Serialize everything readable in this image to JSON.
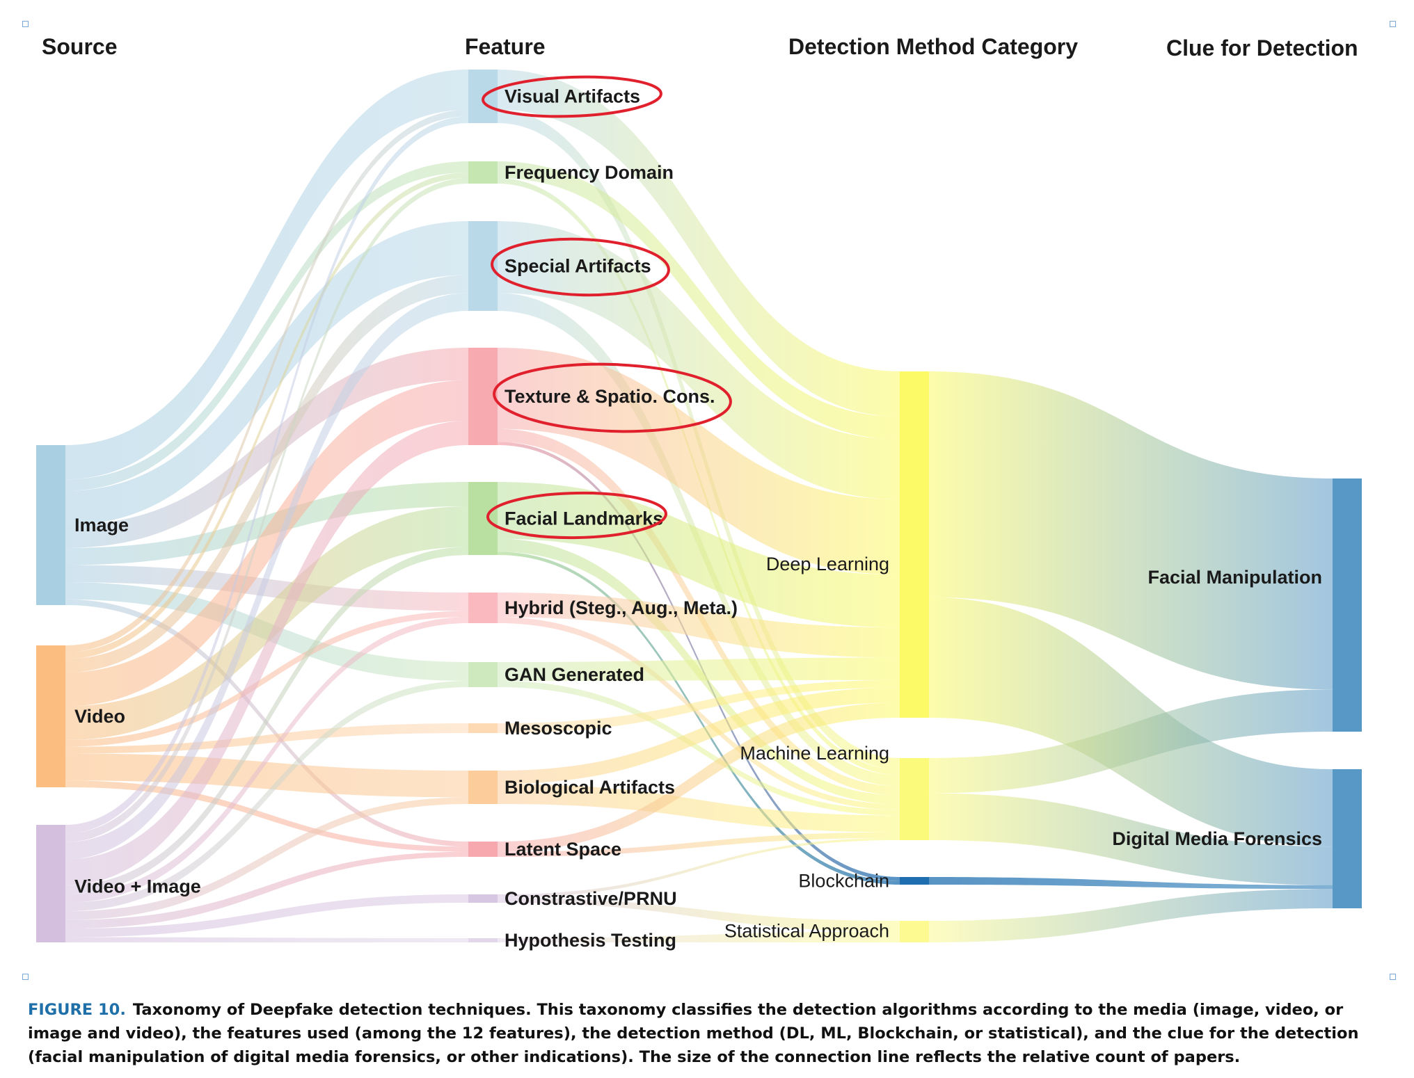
{
  "headers": {
    "source": "Source",
    "feature": "Feature",
    "method": "Detection Method Category",
    "clue": "Clue for Detection"
  },
  "nodes": [
    {
      "id": "image",
      "label": "Image",
      "column": 0,
      "color": "#a9cfe3",
      "opacity": 1
    },
    {
      "id": "video",
      "label": "Video",
      "column": 0,
      "color": "#fbbd80",
      "opacity": 1
    },
    {
      "id": "videoimage",
      "label": "Video + Image",
      "column": 0,
      "color": "#d4c0de",
      "opacity": 1
    },
    {
      "id": "visual",
      "label": "Visual Artifacts",
      "column": 1,
      "color": "#b9d8e8",
      "opacity": 1,
      "circled": true
    },
    {
      "id": "frequency",
      "label": "Frequency Domain",
      "column": 1,
      "color": "#c5e6b0",
      "opacity": 1
    },
    {
      "id": "special",
      "label": "Special Artifacts",
      "column": 1,
      "color": "#b9d8e8",
      "opacity": 1,
      "circled": true
    },
    {
      "id": "texture",
      "label": "Texture & Spatio. Cons.",
      "column": 1,
      "color": "#f7aab0",
      "opacity": 1,
      "circled": true
    },
    {
      "id": "facial",
      "label": "Facial Landmarks",
      "column": 1,
      "color": "#b9e0a0",
      "opacity": 1,
      "circled": true
    },
    {
      "id": "hybrid",
      "label": "Hybrid (Steg., Aug., Meta.)",
      "column": 1,
      "color": "#f9b9be",
      "opacity": 1
    },
    {
      "id": "gan",
      "label": "GAN Generated",
      "column": 1,
      "color": "#cde9bd",
      "opacity": 1
    },
    {
      "id": "meso",
      "label": "Mesoscopic",
      "column": 1,
      "color": "#fdd9b4",
      "opacity": 1
    },
    {
      "id": "bio",
      "label": "Biological Artifacts",
      "column": 1,
      "color": "#fccc9a",
      "opacity": 1
    },
    {
      "id": "latent",
      "label": "Latent Space",
      "column": 1,
      "color": "#f6a8ae",
      "opacity": 1
    },
    {
      "id": "prnu",
      "label": "Constrastive/PRNU",
      "column": 1,
      "color": "#d8c7e3",
      "opacity": 1
    },
    {
      "id": "hypo",
      "label": "Hypothesis Testing",
      "column": 1,
      "color": "#e2d6ea",
      "opacity": 1
    },
    {
      "id": "dl",
      "label": "Deep Learning",
      "column": 2,
      "color": "#fcfa66",
      "opacity": 1
    },
    {
      "id": "ml",
      "label": "Machine Learning",
      "column": 2,
      "color": "#fcfa7a",
      "opacity": 1
    },
    {
      "id": "bc",
      "label": "Blockchain",
      "column": 2,
      "color": "#1f6fb0",
      "opacity": 1
    },
    {
      "id": "stat",
      "label": "Statistical Approach",
      "column": 2,
      "color": "#fcfa90",
      "opacity": 1
    },
    {
      "id": "fm",
      "label": "Facial Manipulation",
      "column": 3,
      "color": "#5798c6",
      "opacity": 1
    },
    {
      "id": "dmf",
      "label": "Digital Media Forensics",
      "column": 3,
      "color": "#5798c6",
      "opacity": 1
    }
  ],
  "links": [
    {
      "source": "image",
      "target": "visual",
      "value": 3
    },
    {
      "source": "image",
      "target": "frequency",
      "value": 1
    },
    {
      "source": "image",
      "target": "special",
      "value": 3
    },
    {
      "source": "image",
      "target": "texture",
      "value": 2
    },
    {
      "source": "image",
      "target": "facial",
      "value": 1.5
    },
    {
      "source": "image",
      "target": "hybrid",
      "value": 1.5
    },
    {
      "source": "image",
      "target": "gan",
      "value": 1.5
    },
    {
      "source": "image",
      "target": "latent",
      "value": 0.5
    },
    {
      "source": "video",
      "target": "visual",
      "value": 0.5
    },
    {
      "source": "video",
      "target": "frequency",
      "value": 0.5
    },
    {
      "source": "video",
      "target": "special",
      "value": 1
    },
    {
      "source": "video",
      "target": "texture",
      "value": 2.5
    },
    {
      "source": "video",
      "target": "facial",
      "value": 2.5
    },
    {
      "source": "video",
      "target": "hybrid",
      "value": 0.5
    },
    {
      "source": "video",
      "target": "meso",
      "value": 0.5
    },
    {
      "source": "video",
      "target": "bio",
      "value": 2
    },
    {
      "source": "video",
      "target": "latent",
      "value": 0.5
    },
    {
      "source": "videoimage",
      "target": "visual",
      "value": 0.5
    },
    {
      "source": "videoimage",
      "target": "frequency",
      "value": 0.5
    },
    {
      "source": "videoimage",
      "target": "special",
      "value": 1
    },
    {
      "source": "videoimage",
      "target": "texture",
      "value": 1.5
    },
    {
      "source": "videoimage",
      "target": "facial",
      "value": 0.5
    },
    {
      "source": "videoimage",
      "target": "hybrid",
      "value": 0.5
    },
    {
      "source": "videoimage",
      "target": "gan",
      "value": 0.5
    },
    {
      "source": "videoimage",
      "target": "bio",
      "value": 0.5
    },
    {
      "source": "videoimage",
      "target": "latent",
      "value": 0.5
    },
    {
      "source": "videoimage",
      "target": "prnu",
      "value": 0.5
    },
    {
      "source": "videoimage",
      "target": "hypo",
      "value": 0.3
    },
    {
      "source": "visual",
      "target": "dl",
      "value": 3
    },
    {
      "source": "visual",
      "target": "ml",
      "value": 1
    },
    {
      "source": "frequency",
      "target": "dl",
      "value": 1.5
    },
    {
      "source": "frequency",
      "target": "ml",
      "value": 0.5
    },
    {
      "source": "special",
      "target": "dl",
      "value": 4
    },
    {
      "source": "special",
      "target": "ml",
      "value": 1
    },
    {
      "source": "texture",
      "target": "dl",
      "value": 5
    },
    {
      "source": "texture",
      "target": "ml",
      "value": 0.8
    },
    {
      "source": "texture",
      "target": "bc",
      "value": 0.2
    },
    {
      "source": "facial",
      "target": "dl",
      "value": 3.5
    },
    {
      "source": "facial",
      "target": "ml",
      "value": 0.8
    },
    {
      "source": "facial",
      "target": "bc",
      "value": 0.2
    },
    {
      "source": "hybrid",
      "target": "dl",
      "value": 2
    },
    {
      "source": "hybrid",
      "target": "ml",
      "value": 0.5
    },
    {
      "source": "gan",
      "target": "dl",
      "value": 1.5
    },
    {
      "source": "gan",
      "target": "ml",
      "value": 0.5
    },
    {
      "source": "meso",
      "target": "dl",
      "value": 0.5
    },
    {
      "source": "bio",
      "target": "dl",
      "value": 1
    },
    {
      "source": "bio",
      "target": "ml",
      "value": 1.5
    },
    {
      "source": "latent",
      "target": "dl",
      "value": 1
    },
    {
      "source": "latent",
      "target": "ml",
      "value": 0.5
    },
    {
      "source": "prnu",
      "target": "stat",
      "value": 0.3
    },
    {
      "source": "prnu",
      "target": "ml",
      "value": 0.2
    },
    {
      "source": "hypo",
      "target": "stat",
      "value": 0.3
    },
    {
      "source": "dl",
      "target": "fm",
      "value": 15
    },
    {
      "source": "dl",
      "target": "dmf",
      "value": 8
    },
    {
      "source": "ml",
      "target": "fm",
      "value": 3
    },
    {
      "source": "ml",
      "target": "dmf",
      "value": 4
    },
    {
      "source": "bc",
      "target": "dmf",
      "value": 0.4
    },
    {
      "source": "stat",
      "target": "dmf",
      "value": 2
    }
  ],
  "caption": {
    "label": "FIGURE 10.",
    "text": "Taxonomy of Deepfake detection techniques. This taxonomy classifies the detection algorithms according to the media (image, video, or image and video), the features used (among the 12 features), the detection method (DL, ML, Blockchain, or statistical), and the clue for the detection (facial manipulation of digital media forensics, or other indications). The size of the connection line reflects the relative count of papers."
  },
  "colors": {
    "annotation": "#e0202c",
    "caption_label": "#1f6fa8"
  }
}
